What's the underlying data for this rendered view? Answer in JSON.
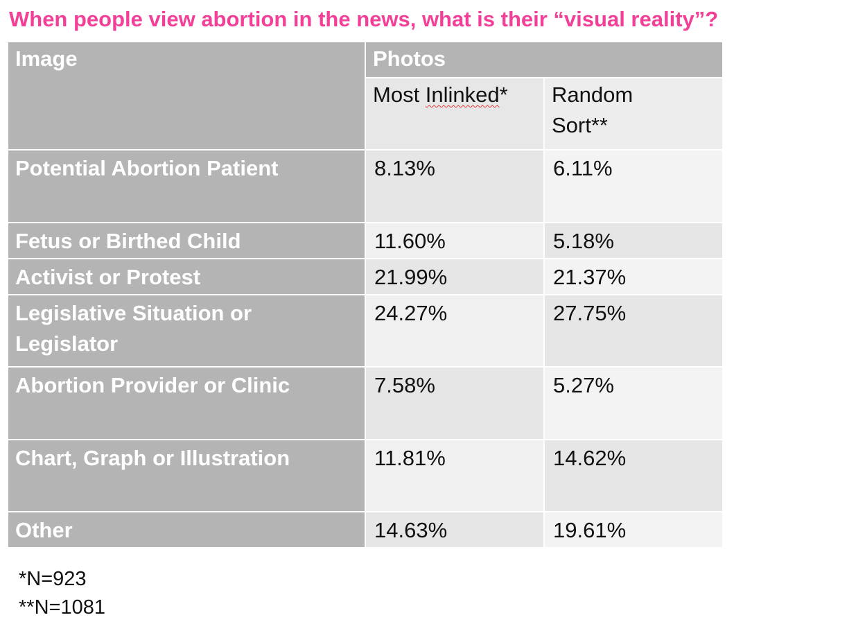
{
  "chart_data": {
    "type": "table",
    "title": "When people view abortion in the news, what is their “visual reality”?",
    "header": {
      "image_label": "Image",
      "group_label": "Photos",
      "col1_prefix": "Most ",
      "col1_word": "Inlinked",
      "col1_suffix": "*",
      "col2_line1": "Random",
      "col2_line2": "Sort**"
    },
    "columns": [
      "Most Inlinked*",
      "Random Sort**"
    ],
    "rows": [
      {
        "label": "Potential Abortion Patient",
        "values": [
          "8.13%",
          "6.11%"
        ]
      },
      {
        "label": "Fetus or Birthed Child",
        "values": [
          "11.60%",
          "5.18%"
        ]
      },
      {
        "label": "Activist or Protest",
        "values": [
          "21.99%",
          "21.37%"
        ]
      },
      {
        "label": "Legislative Situation or Legislator",
        "values": [
          "24.27%",
          "27.75%"
        ]
      },
      {
        "label": "Abortion Provider or Clinic",
        "values": [
          "7.58%",
          "5.27%"
        ]
      },
      {
        "label": "Chart, Graph or Illustration",
        "values": [
          "11.81%",
          "14.62%"
        ]
      },
      {
        "label": "Other",
        "values": [
          "14.63%",
          "19.61%"
        ]
      }
    ],
    "footnotes": [
      "*N=923",
      "**N=1081"
    ]
  }
}
